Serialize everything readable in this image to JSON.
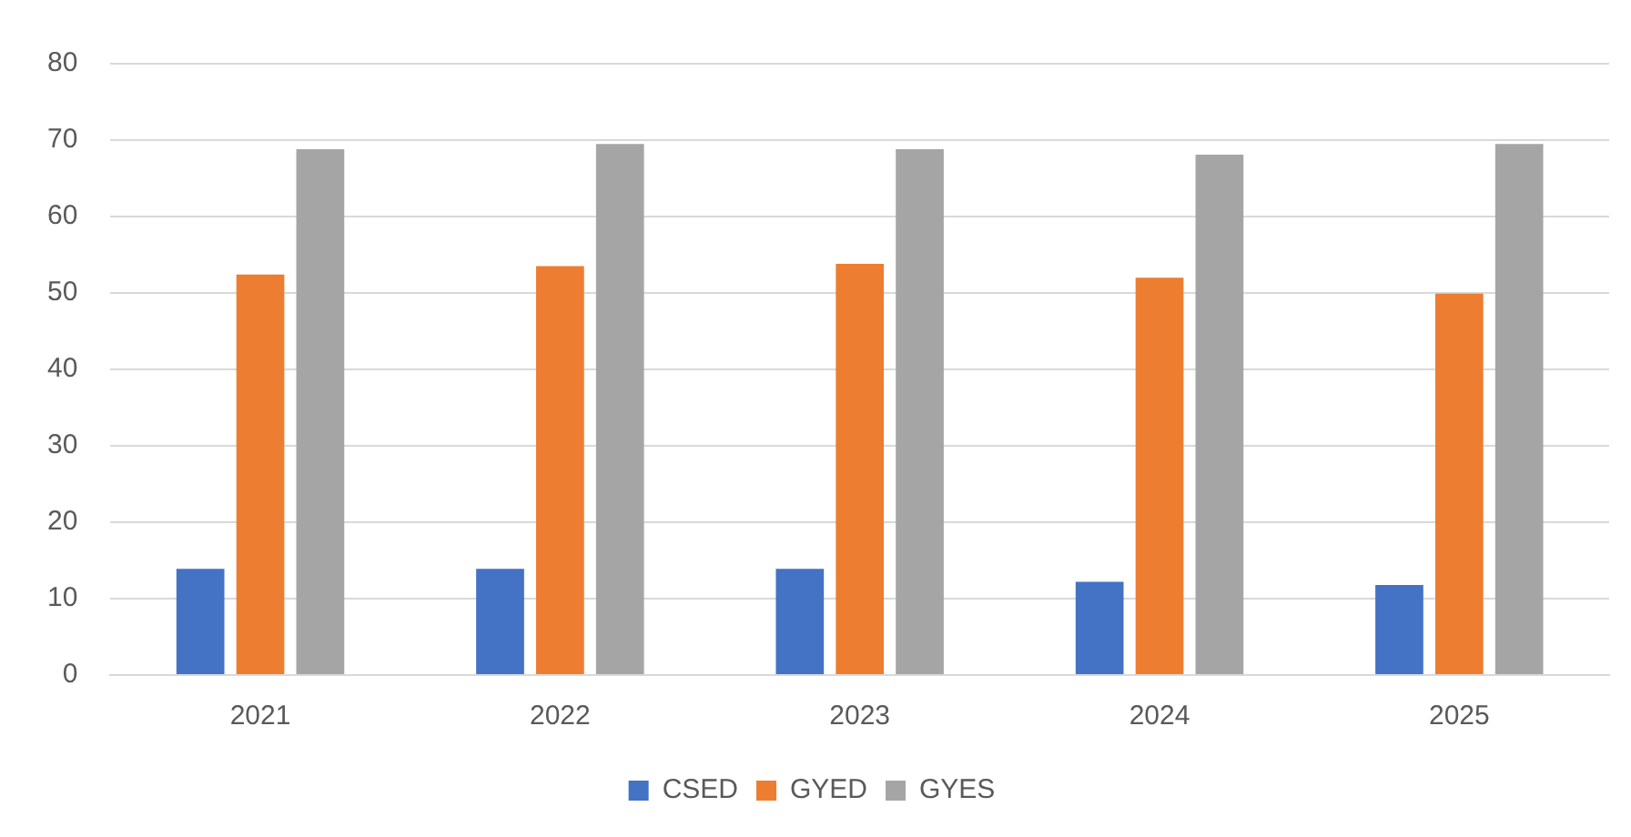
{
  "chart_data": {
    "type": "bar",
    "categories": [
      "2021",
      "2022",
      "2023",
      "2024",
      "2025"
    ],
    "series": [
      {
        "name": "CSED",
        "color": "#4472c4",
        "values": [
          13.9,
          13.9,
          13.9,
          12.2,
          11.8
        ]
      },
      {
        "name": "GYED",
        "color": "#ed7d31",
        "values": [
          52.4,
          53.5,
          53.8,
          52.0,
          49.9
        ]
      },
      {
        "name": "GYES",
        "color": "#a5a5a5",
        "values": [
          68.8,
          69.5,
          68.8,
          68.1,
          69.5
        ]
      }
    ],
    "ylim": [
      0,
      80
    ],
    "yticks": [
      0,
      10,
      20,
      30,
      40,
      50,
      60,
      70,
      80
    ],
    "grid": "y",
    "legend": "bottom"
  }
}
